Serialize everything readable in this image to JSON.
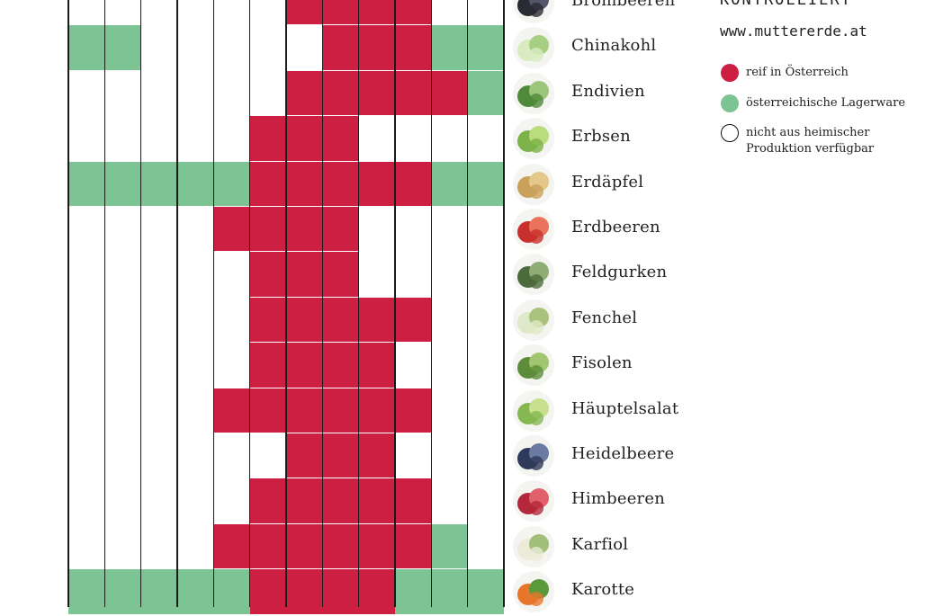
{
  "header": {
    "brand": "KONTROLLIERT",
    "url": "www.muttererde.at"
  },
  "legend": [
    {
      "key": "red",
      "label": "reif in Österreich",
      "color": "#cc1f41"
    },
    {
      "key": "green",
      "label": "österreichische Lagerware",
      "color": "#7dc495"
    },
    {
      "key": "none",
      "label": "nicht aus heimischer\nProduktion verfügbar",
      "color": "#ffffff"
    }
  ],
  "chart_data": {
    "type": "heatmap",
    "categories_note": "12 monthly columns, month names not visible in crop",
    "status_codes": {
      "R": "reif in Österreich",
      "G": "österreichische Lagerware",
      "W": "nicht aus heimischer Produktion verfügbar"
    },
    "rows": [
      {
        "name": "Brombeeren",
        "icon": "blackberry-icon",
        "months": [
          "W",
          "W",
          "W",
          "W",
          "W",
          "W",
          "R",
          "R",
          "R",
          "R",
          "W",
          "W"
        ]
      },
      {
        "name": "Chinakohl",
        "icon": "chinese-cabbage-icon",
        "months": [
          "G",
          "G",
          "W",
          "W",
          "W",
          "W",
          "W",
          "R",
          "R",
          "R",
          "G",
          "G"
        ]
      },
      {
        "name": "Endivien",
        "icon": "endive-icon",
        "months": [
          "W",
          "W",
          "W",
          "W",
          "W",
          "W",
          "R",
          "R",
          "R",
          "R",
          "R",
          "G"
        ]
      },
      {
        "name": "Erbsen",
        "icon": "peas-icon",
        "months": [
          "W",
          "W",
          "W",
          "W",
          "W",
          "R",
          "R",
          "R",
          "W",
          "W",
          "W",
          "W"
        ]
      },
      {
        "name": "Erdäpfel",
        "icon": "potato-icon",
        "months": [
          "G",
          "G",
          "G",
          "G",
          "G",
          "R",
          "R",
          "R",
          "R",
          "R",
          "G",
          "G"
        ]
      },
      {
        "name": "Erdbeeren",
        "icon": "strawberry-icon",
        "months": [
          "W",
          "W",
          "W",
          "W",
          "R",
          "R",
          "R",
          "R",
          "W",
          "W",
          "W",
          "W"
        ]
      },
      {
        "name": "Feldgurken",
        "icon": "cucumber-icon",
        "months": [
          "W",
          "W",
          "W",
          "W",
          "W",
          "R",
          "R",
          "R",
          "W",
          "W",
          "W",
          "W"
        ]
      },
      {
        "name": "Fenchel",
        "icon": "fennel-icon",
        "months": [
          "W",
          "W",
          "W",
          "W",
          "W",
          "R",
          "R",
          "R",
          "R",
          "R",
          "W",
          "W"
        ]
      },
      {
        "name": "Fisolen",
        "icon": "green-beans-icon",
        "months": [
          "W",
          "W",
          "W",
          "W",
          "W",
          "R",
          "R",
          "R",
          "R",
          "W",
          "W",
          "W"
        ]
      },
      {
        "name": "Häuptelsalat",
        "icon": "lettuce-icon",
        "months": [
          "W",
          "W",
          "W",
          "W",
          "R",
          "R",
          "R",
          "R",
          "R",
          "R",
          "W",
          "W"
        ]
      },
      {
        "name": "Heidelbeere",
        "icon": "blueberry-icon",
        "months": [
          "W",
          "W",
          "W",
          "W",
          "W",
          "W",
          "R",
          "R",
          "R",
          "W",
          "W",
          "W"
        ]
      },
      {
        "name": "Himbeeren",
        "icon": "raspberry-icon",
        "months": [
          "W",
          "W",
          "W",
          "W",
          "W",
          "R",
          "R",
          "R",
          "R",
          "R",
          "W",
          "W"
        ]
      },
      {
        "name": "Karfiol",
        "icon": "cauliflower-icon",
        "months": [
          "W",
          "W",
          "W",
          "W",
          "R",
          "R",
          "R",
          "R",
          "R",
          "R",
          "G",
          "W"
        ]
      },
      {
        "name": "Karotte",
        "icon": "carrot-icon",
        "months": [
          "G",
          "G",
          "G",
          "G",
          "G",
          "R",
          "R",
          "R",
          "R",
          "G",
          "G",
          "G"
        ]
      }
    ]
  }
}
